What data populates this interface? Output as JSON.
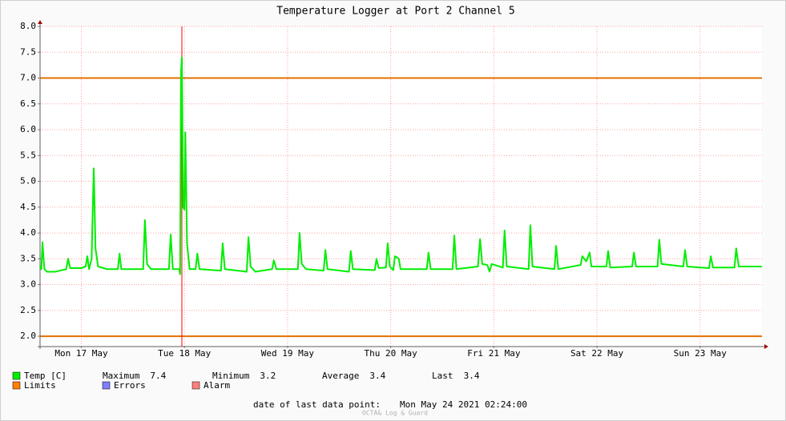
{
  "chart_data": {
    "type": "line",
    "title": "Temperature Logger at Port 2 Channel 5",
    "x": [
      2.4,
      2.7,
      2.96,
      3.4,
      4.0,
      6,
      8.5,
      8.93,
      9.4,
      12,
      13.0,
      13.4,
      13.8,
      14.4,
      14.7,
      14.9,
      15.3,
      15.9,
      18,
      20.5,
      20.9,
      21.3,
      26.4,
      26.8,
      27.3,
      28.2,
      32.4,
      32.8,
      33.3,
      34.8,
      35.0,
      35.2,
      35.4,
      35.7,
      36.0,
      36.2,
      36.4,
      36.6,
      37.2,
      38.6,
      39.0,
      39.5,
      44.5,
      44.9,
      45.4,
      50.5,
      50.9,
      51.4,
      52.5,
      56.4,
      56.8,
      57.4,
      62.4,
      62.8,
      63.3,
      64.3,
      68.4,
      68.8,
      69.3,
      74.3,
      74.7,
      75.2,
      80.3,
      80.7,
      81.2,
      82.9,
      83.3,
      83.8,
      84.6,
      85.0,
      85.9,
      86.3,
      92.4,
      92.8,
      93.3,
      98.4,
      98.8,
      99.3,
      104.3,
      104.8,
      105.3,
      106.5,
      107,
      107.5,
      110.1,
      110.5,
      111,
      116.1,
      116.5,
      117,
      122.1,
      122.5,
      123,
      128.2,
      128.6,
      129.5,
      130.3,
      130.7,
      134.2,
      134.6,
      135.1,
      140.2,
      140.6,
      141.1,
      146.1,
      146.5,
      147,
      152.1,
      152.5,
      153,
      158.1,
      158.5,
      159,
      164,
      164.4,
      165,
      170.4
    ],
    "series": [
      {
        "name": "Temp [C]",
        "color": "#00ee00",
        "values": [
          3.35,
          3.3,
          3.82,
          3.3,
          3.25,
          3.25,
          3.3,
          3.5,
          3.32,
          3.32,
          3.35,
          3.55,
          3.3,
          3.5,
          4.6,
          5.25,
          3.7,
          3.35,
          3.3,
          3.3,
          3.6,
          3.3,
          3.3,
          4.25,
          3.4,
          3.3,
          3.3,
          3.97,
          3.3,
          3.3,
          3.2,
          7.1,
          7.4,
          4.5,
          4.45,
          5.95,
          4.9,
          3.8,
          3.3,
          3.3,
          3.6,
          3.3,
          3.27,
          3.8,
          3.3,
          3.25,
          3.92,
          3.35,
          3.25,
          3.3,
          3.47,
          3.3,
          3.3,
          4.0,
          3.4,
          3.3,
          3.27,
          3.67,
          3.3,
          3.25,
          3.65,
          3.3,
          3.28,
          3.5,
          3.32,
          3.33,
          3.8,
          3.35,
          3.28,
          3.55,
          3.5,
          3.3,
          3.3,
          3.62,
          3.3,
          3.3,
          3.95,
          3.3,
          3.35,
          3.88,
          3.4,
          3.38,
          3.25,
          3.4,
          3.33,
          4.05,
          3.35,
          3.3,
          4.15,
          3.35,
          3.3,
          3.75,
          3.3,
          3.38,
          3.55,
          3.45,
          3.62,
          3.35,
          3.35,
          3.65,
          3.33,
          3.35,
          3.62,
          3.35,
          3.35,
          3.87,
          3.4,
          3.35,
          3.67,
          3.35,
          3.32,
          3.55,
          3.33,
          3.33,
          3.7,
          3.35,
          3.35
        ]
      }
    ],
    "xlim": [
      2.4,
      170.4
    ],
    "xticks": [
      {
        "value": 12,
        "label": "Mon 17 May"
      },
      {
        "value": 36,
        "label": "Tue 18 May"
      },
      {
        "value": 60,
        "label": "Wed 19 May"
      },
      {
        "value": 84,
        "label": "Thu 20 May"
      },
      {
        "value": 108,
        "label": "Fri 21 May"
      },
      {
        "value": 132,
        "label": "Sat 22 May"
      },
      {
        "value": 156,
        "label": "Sun 23 May"
      }
    ],
    "ylim": [
      1.8,
      8.0
    ],
    "yticks": [
      {
        "value": 2,
        "label": "2.0"
      },
      2.5,
      {
        "value": 3,
        "label": "3.0"
      },
      3.5,
      {
        "value": 4,
        "label": "4.0"
      },
      4.5,
      {
        "value": 5,
        "label": "5.0"
      },
      5.5,
      {
        "value": 6,
        "label": "6.0"
      },
      6.5,
      {
        "value": 7,
        "label": "7.0"
      },
      7.5,
      {
        "value": 8,
        "label": "8.0"
      }
    ],
    "grid": true,
    "limits": [
      7,
      2
    ],
    "limits_color": "#e07000",
    "marker_x": 35.4,
    "marker_color": "#ff0000",
    "legend_extra": [
      {
        "name": "Limits",
        "color": "#ff7f00"
      },
      {
        "name": "Errors",
        "color": "#7f7fff"
      },
      {
        "name": "Alarm",
        "color": "#ff7f7f"
      }
    ],
    "stats": [
      {
        "label": "Maximum",
        "value": 7.4
      },
      {
        "label": "Minimum",
        "value": 3.2
      },
      {
        "label": "Average",
        "value": 3.4
      },
      {
        "label": "Last",
        "value": 3.4
      }
    ],
    "footer_label": "date of last data point:",
    "footer_value": "Mon May 24 2021 02:24:00",
    "watermark": "OCTA& Log & Guard"
  }
}
